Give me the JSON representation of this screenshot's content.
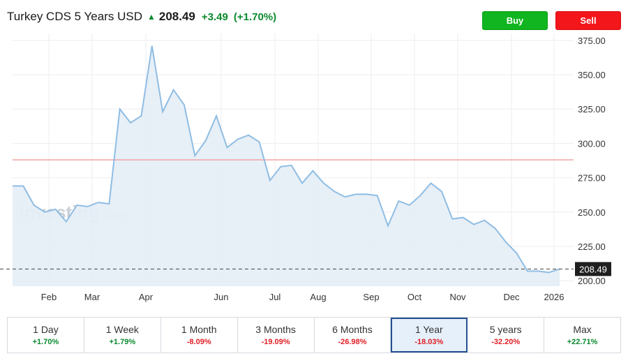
{
  "header": {
    "title": "Turkey CDS 5 Years USD",
    "price": "208.49",
    "change": "+3.49",
    "change_pct": "(+1.70%)",
    "arrow_icon": "arrow-up-icon",
    "up_color": "#0b8a2e"
  },
  "buttons": {
    "buy_label": "Buy",
    "sell_label": "Sell",
    "buy_color": "#11b51f",
    "sell_color": "#f3161b"
  },
  "chart_data": {
    "type": "area",
    "x_tick_labels": [
      "Feb",
      "Mar",
      "Apr",
      "Jun",
      "Jul",
      "Aug",
      "Sep",
      "Oct",
      "Nov",
      "Dec",
      "2026"
    ],
    "y_tick_labels": [
      "200.00",
      "225.00",
      "250.00",
      "275.00",
      "300.00",
      "325.00",
      "350.00",
      "375.00"
    ],
    "ylim": [
      196,
      380
    ],
    "grid": true,
    "series": [
      {
        "values": [
          269,
          269,
          255,
          250,
          252,
          243,
          255,
          254,
          257,
          256,
          325,
          315,
          320,
          371,
          323,
          339,
          328,
          291,
          302,
          320,
          297,
          303,
          306,
          301,
          273,
          283,
          284,
          271,
          280,
          271,
          265,
          261,
          263,
          263,
          262,
          240,
          258,
          255,
          262,
          271,
          265,
          245,
          246,
          241,
          244,
          238,
          228,
          220,
          207,
          207,
          206,
          208.49
        ]
      }
    ],
    "reference_level": 288,
    "last_value": 208.49,
    "last_value_label": "208.49",
    "watermark_left": "Investing",
    "watermark_right": ".com",
    "line_color": "#8fbde3",
    "area_color": "#e6eef7",
    "reference_color": "#f4a3a3"
  },
  "ranges": [
    {
      "label": "1 Day",
      "value": "+1.70%",
      "positive": true,
      "active": false
    },
    {
      "label": "1 Week",
      "value": "+1.79%",
      "positive": true,
      "active": false
    },
    {
      "label": "1 Month",
      "value": "-8.09%",
      "positive": false,
      "active": false
    },
    {
      "label": "3 Months",
      "value": "-19.09%",
      "positive": false,
      "active": false
    },
    {
      "label": "6 Months",
      "value": "-26.98%",
      "positive": false,
      "active": false
    },
    {
      "label": "1 Year",
      "value": "-18.03%",
      "positive": false,
      "active": true
    },
    {
      "label": "5 years",
      "value": "-32.20%",
      "positive": false,
      "active": false
    },
    {
      "label": "Max",
      "value": "+22.71%",
      "positive": true,
      "active": false
    }
  ]
}
